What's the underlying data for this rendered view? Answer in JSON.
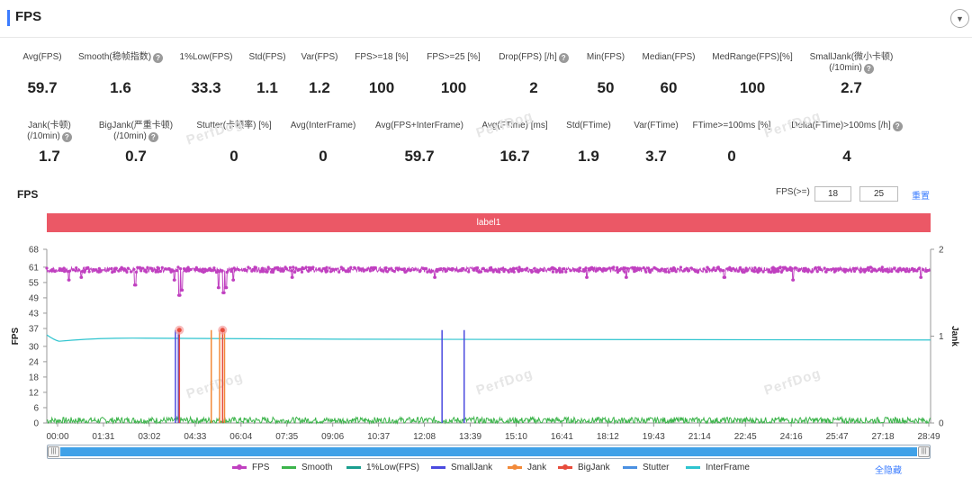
{
  "header": {
    "title": "FPS"
  },
  "stats_row1": [
    {
      "label": "Avg(FPS)",
      "value": "59.7",
      "help": false
    },
    {
      "label": "Smooth(稳帧指数)",
      "value": "1.6",
      "help": true
    },
    {
      "label": "1%Low(FPS)",
      "value": "33.3",
      "help": false
    },
    {
      "label": "Std(FPS)",
      "value": "1.1",
      "help": false
    },
    {
      "label": "Var(FPS)",
      "value": "1.2",
      "help": false
    },
    {
      "label": "FPS>=18 [%]",
      "value": "100",
      "help": false
    },
    {
      "label": "FPS>=25 [%]",
      "value": "100",
      "help": false
    },
    {
      "label": "Drop(FPS) [/h]",
      "value": "2",
      "help": true
    },
    {
      "label": "Min(FPS)",
      "value": "50",
      "help": false
    },
    {
      "label": "Median(FPS)",
      "value": "60",
      "help": false
    },
    {
      "label": "MedRange(FPS)[%]",
      "value": "100",
      "help": false
    },
    {
      "label": "SmallJank(微小卡顿)",
      "label2": "(/10min)",
      "value": "2.7",
      "help": true
    }
  ],
  "stats_row2": [
    {
      "label": "Jank(卡顿)",
      "label2": "(/10min)",
      "value": "1.7",
      "help": true
    },
    {
      "label": "BigJank(严重卡顿)",
      "label2": "(/10min)",
      "value": "0.7",
      "help": true
    },
    {
      "label": "Stutter(卡顿率) [%]",
      "value": "0",
      "help": false
    },
    {
      "label": "Avg(InterFrame)",
      "value": "0",
      "help": false
    },
    {
      "label": "Avg(FPS+InterFrame)",
      "value": "59.7",
      "help": false
    },
    {
      "label": "Avg(FTime) [ms]",
      "value": "16.7",
      "help": false
    },
    {
      "label": "Std(FTime)",
      "value": "1.9",
      "help": false
    },
    {
      "label": "Var(FTime)",
      "value": "3.7",
      "help": false
    },
    {
      "label": "FTime>=100ms [%]",
      "value": "0",
      "help": false
    },
    {
      "label": "Delta(FTime)>100ms [/h]",
      "value": "4",
      "help": true
    }
  ],
  "watermark": "PerfDog",
  "chart_section": {
    "title": "FPS",
    "threshold_label": "FPS(>=)",
    "threshold1": "18",
    "threshold2": "25",
    "reset": "重置",
    "label_bar": "label1",
    "hide_all": "全隐藏"
  },
  "chart_data": {
    "type": "line",
    "x_ticks": [
      "00:00",
      "01:31",
      "03:02",
      "04:33",
      "06:04",
      "07:35",
      "09:06",
      "10:37",
      "12:08",
      "13:39",
      "15:10",
      "16:41",
      "18:12",
      "19:43",
      "21:14",
      "22:45",
      "24:16",
      "25:47",
      "27:18",
      "28:49"
    ],
    "x_range_seconds": [
      0,
      1800
    ],
    "ylabel": "FPS",
    "ylim": [
      0,
      68
    ],
    "y_ticks": [
      0,
      6,
      12,
      18,
      24,
      30,
      37,
      43,
      49,
      55,
      61,
      68
    ],
    "y2label": "Jank",
    "y2lim": [
      0,
      2
    ],
    "y2_ticks": [
      0,
      1,
      2
    ],
    "legend_position": "bottom",
    "series": [
      {
        "name": "FPS",
        "color": "#c040c0",
        "baseline": 60,
        "dips": [
          [
            45,
            56
          ],
          [
            70,
            57
          ],
          [
            180,
            54
          ],
          [
            260,
            56
          ],
          [
            270,
            50
          ],
          [
            275,
            52
          ],
          [
            350,
            53
          ],
          [
            360,
            51
          ],
          [
            365,
            53
          ],
          [
            380,
            56
          ],
          [
            500,
            57
          ],
          [
            790,
            57
          ],
          [
            1100,
            57
          ],
          [
            1180,
            57
          ],
          [
            1380,
            57
          ],
          [
            1520,
            56
          ],
          [
            1780,
            57
          ]
        ]
      },
      {
        "name": "Smooth",
        "color": "#3cb44b",
        "baseline": 1
      },
      {
        "name": "1%Low(FPS)",
        "color": "#1a9e8f"
      },
      {
        "name": "SmallJank",
        "color": "#4a4adf",
        "events_seconds": [
          262,
          268,
          805,
          850
        ]
      },
      {
        "name": "Jank",
        "color": "#f28a3a",
        "events_seconds": [
          335,
          352,
          362
        ]
      },
      {
        "name": "BigJank",
        "color": "#e74c3c",
        "events_seconds": [
          270,
          358
        ]
      },
      {
        "name": "Stutter",
        "color": "#4a90e2"
      },
      {
        "name": "InterFrame",
        "color": "#2ec4cf",
        "start_value": 34.5,
        "steady_value": 32.8
      }
    ]
  }
}
